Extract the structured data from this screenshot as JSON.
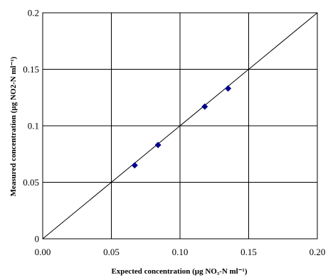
{
  "chart_data": {
    "type": "scatter",
    "xlabel": "Expected concentration (µg NO₃-N ml⁻¹)",
    "ylabel": "Measured concentration (µg NO2-N ml⁻¹)",
    "xlim": [
      0,
      0.2
    ],
    "ylim": [
      0,
      0.2
    ],
    "grid": true,
    "x_tick_labels": [
      "0.00",
      "0.05",
      "0.10",
      "0.15",
      "0.20"
    ],
    "y_tick_labels": [
      "0",
      "0.05",
      "0.1",
      "0.15",
      "0.2"
    ],
    "reference_line": {
      "x": [
        0,
        0.2
      ],
      "y": [
        0,
        0.2
      ]
    },
    "series": [
      {
        "x": [
          0.067,
          0.084,
          0.118,
          0.135
        ],
        "y": [
          0.065,
          0.083,
          0.117,
          0.133
        ],
        "color": "#00008B",
        "marker": "diamond"
      }
    ],
    "colors": {
      "grid": "#000000",
      "axis": "#000000",
      "reference_line": "#000000"
    }
  }
}
